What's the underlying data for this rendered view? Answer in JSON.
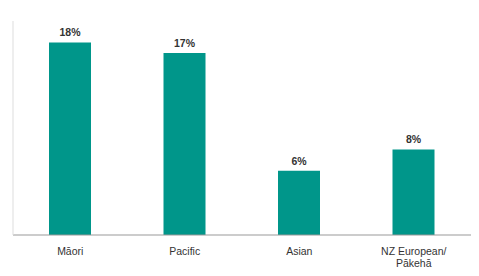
{
  "chart_data": {
    "type": "bar",
    "categories": [
      "Māori",
      "Pacific",
      "Asian",
      "NZ European/ Pākehā"
    ],
    "values": [
      18,
      17,
      6,
      8
    ],
    "value_labels": [
      "18%",
      "17%",
      "6%",
      "8%"
    ],
    "color": "#00968a",
    "ylim": [
      0,
      20
    ],
    "yticks": [],
    "data_labels": true,
    "tick_labels": "x",
    "grid": false
  }
}
